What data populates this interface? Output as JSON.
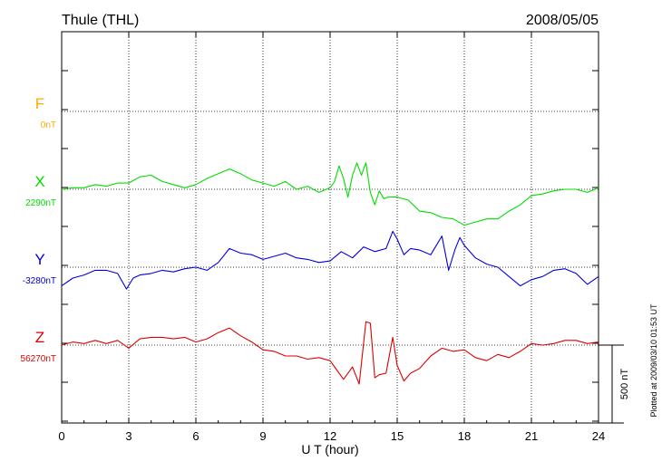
{
  "chart_data": {
    "type": "line",
    "title": "Thule (THL)",
    "date": "2008/05/05",
    "xlabel": "U T (hour)",
    "xlim": [
      0,
      24
    ],
    "xticks": [
      "0",
      "3",
      "6",
      "9",
      "12",
      "15",
      "18",
      "21",
      "24"
    ],
    "scale_bar_label": "500 nT",
    "footer": "Plotted at 2009/03/10 01:53 UT",
    "grid": true,
    "series": [
      {
        "name": "F",
        "baseline_label": "0nT",
        "color": "#ffaa00",
        "x": [],
        "y": []
      },
      {
        "name": "X",
        "baseline_label": "2290nT",
        "color": "#00dd00",
        "x": [
          0,
          0.5,
          1,
          1.5,
          2,
          2.5,
          3,
          3.5,
          4,
          4.5,
          5,
          5.5,
          6,
          6.5,
          7,
          7.5,
          8,
          8.5,
          9,
          9.5,
          10,
          10.5,
          11,
          11.5,
          12,
          12.2,
          12.4,
          12.6,
          12.8,
          13,
          13.2,
          13.4,
          13.6,
          13.8,
          14,
          14.2,
          14.4,
          14.6,
          15,
          15.5,
          16,
          16.5,
          17,
          17.5,
          18,
          18.5,
          19,
          19.5,
          20,
          20.5,
          21,
          21.5,
          22,
          22.5,
          23,
          23.5,
          24
        ],
        "y": [
          2290,
          2300,
          2300,
          2320,
          2310,
          2330,
          2330,
          2370,
          2380,
          2340,
          2320,
          2300,
          2320,
          2360,
          2390,
          2420,
          2390,
          2350,
          2330,
          2310,
          2340,
          2290,
          2310,
          2270,
          2300,
          2340,
          2440,
          2360,
          2240,
          2380,
          2460,
          2380,
          2460,
          2270,
          2190,
          2280,
          2230,
          2240,
          2240,
          2220,
          2150,
          2140,
          2110,
          2100,
          2060,
          2080,
          2100,
          2100,
          2150,
          2190,
          2250,
          2260,
          2280,
          2290,
          2290,
          2270,
          2300
        ]
      },
      {
        "name": "Y",
        "baseline_label": "-3280nT",
        "color": "#0000dd",
        "x": [
          0,
          0.5,
          1,
          1.5,
          2,
          2.5,
          2.9,
          3.2,
          3.5,
          4,
          4.5,
          5,
          5.5,
          6,
          6.5,
          7,
          7.5,
          8,
          8.5,
          9,
          9.5,
          10,
          10.5,
          11,
          11.5,
          12,
          12.5,
          13,
          13.5,
          14,
          14.5,
          14.8,
          15,
          15.3,
          15.6,
          16,
          16.5,
          17,
          17.3,
          17.6,
          17.8,
          18,
          18.5,
          19,
          19.5,
          20,
          20.5,
          21,
          21.5,
          22,
          22.5,
          23,
          23.5,
          24
        ],
        "y": [
          -3400,
          -3350,
          -3330,
          -3300,
          -3300,
          -3320,
          -3420,
          -3350,
          -3330,
          -3320,
          -3300,
          -3310,
          -3290,
          -3280,
          -3300,
          -3250,
          -3160,
          -3190,
          -3200,
          -3230,
          -3210,
          -3190,
          -3220,
          -3230,
          -3250,
          -3240,
          -3180,
          -3220,
          -3150,
          -3180,
          -3160,
          -3050,
          -3100,
          -3200,
          -3160,
          -3170,
          -3200,
          -3080,
          -3300,
          -3160,
          -3090,
          -3140,
          -3220,
          -3260,
          -3280,
          -3340,
          -3400,
          -3360,
          -3340,
          -3300,
          -3290,
          -3320,
          -3390,
          -3340
        ]
      },
      {
        "name": "Z",
        "baseline_label": "56270nT",
        "color": "#dd0000",
        "x": [
          0,
          0.5,
          1,
          1.5,
          2,
          2.5,
          3,
          3.5,
          4,
          4.5,
          5,
          5.5,
          6,
          6.5,
          7,
          7.5,
          8,
          8.5,
          9,
          9.5,
          10,
          10.5,
          11,
          11.5,
          12,
          12.3,
          12.6,
          13,
          13.3,
          13.6,
          13.8,
          14,
          14.2,
          14.5,
          14.8,
          15,
          15.3,
          15.6,
          16,
          16.5,
          17,
          17.5,
          18,
          18.5,
          19,
          19.5,
          20,
          20.5,
          21,
          21.5,
          22,
          22.5,
          23,
          23.5,
          24
        ],
        "y": [
          56270,
          56290,
          56280,
          56300,
          56280,
          56300,
          56250,
          56310,
          56320,
          56320,
          56310,
          56320,
          56290,
          56310,
          56350,
          56380,
          56330,
          56290,
          56240,
          56230,
          56200,
          56200,
          56180,
          56190,
          56170,
          56110,
          56050,
          56130,
          56020,
          56420,
          56410,
          56060,
          56080,
          56090,
          56320,
          56140,
          56040,
          56090,
          56120,
          56200,
          56250,
          56230,
          56240,
          56190,
          56170,
          56210,
          56190,
          56230,
          56280,
          56270,
          56280,
          56300,
          56300,
          56280,
          56290
        ]
      }
    ]
  }
}
